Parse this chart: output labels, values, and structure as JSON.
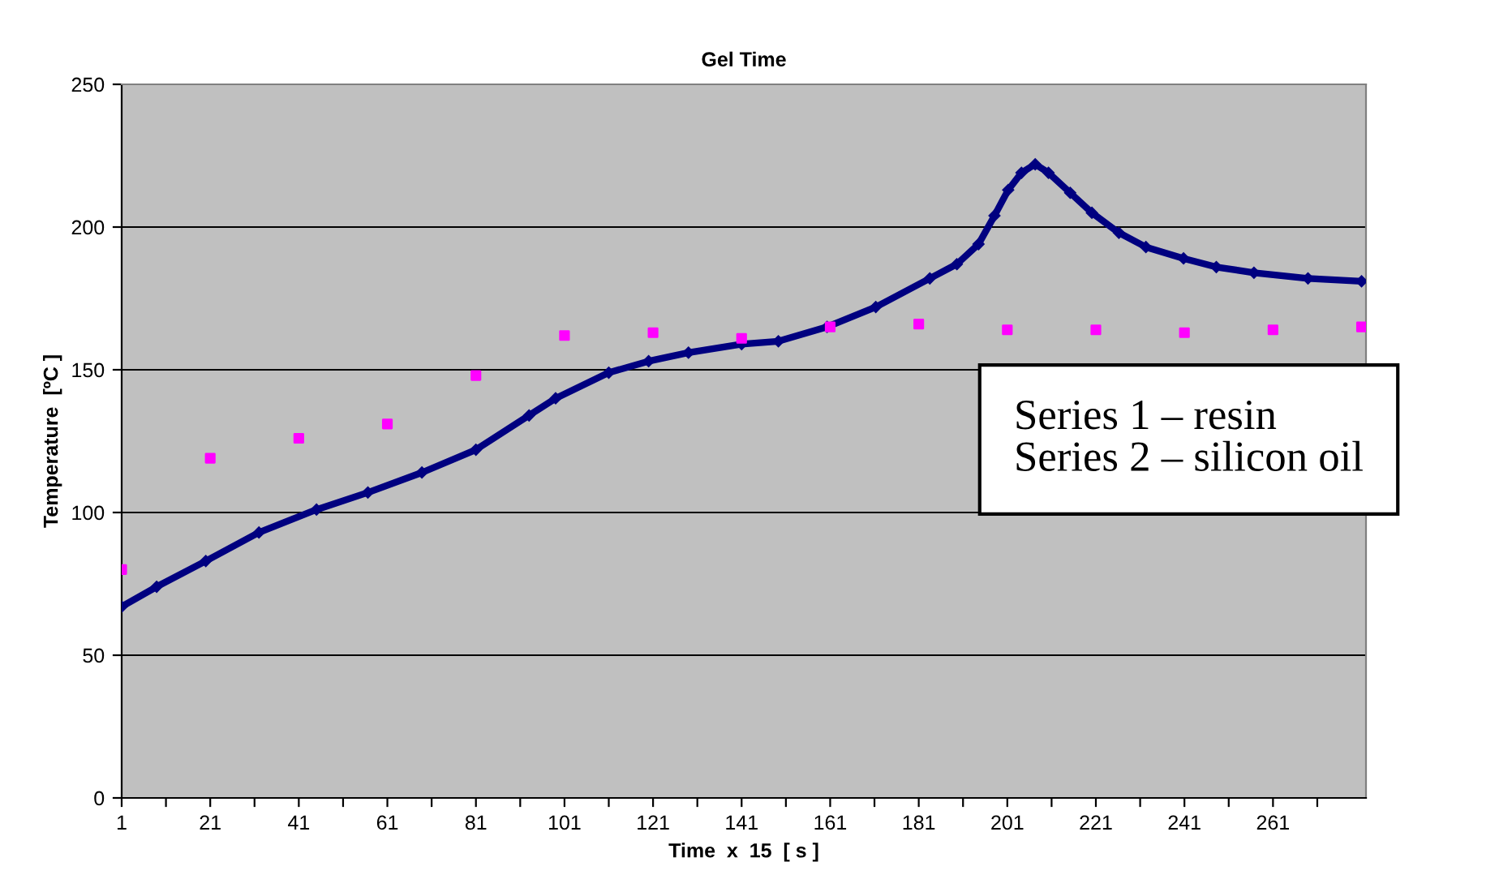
{
  "chart_data": {
    "type": "line",
    "title": "Gel Time",
    "xlabel": "Time  x  15  [ s ]",
    "ylabel": "Temperature  [ºC ]",
    "series": [
      {
        "color": "#000080",
        "marker": "diamond",
        "x": [
          1,
          8.9,
          20,
          32,
          45,
          56.6,
          68.8,
          81,
          93,
          99,
          111,
          120,
          129,
          141,
          149.3,
          160.3,
          171.3,
          183.5,
          189.6,
          194.5,
          198.1,
          201.2,
          204.2,
          207.3,
          210.3,
          215.2,
          220.1,
          226.2,
          232.3,
          240.8,
          248.2,
          256.7,
          268.9,
          281
        ],
        "values": [
          67,
          74,
          83,
          93,
          101,
          107,
          114,
          122,
          134,
          140,
          149,
          153,
          156,
          159,
          160,
          165,
          172,
          182,
          187,
          194,
          204,
          213,
          219,
          222,
          219,
          212,
          205,
          198,
          193,
          189,
          186,
          184,
          182,
          181
        ]
      },
      {
        "type": "scatter",
        "color": "#ff00ff",
        "marker": "square",
        "x": [
          1,
          21,
          41,
          61,
          81,
          101,
          121,
          141,
          161,
          181,
          201,
          221,
          241,
          261,
          281
        ],
        "values": [
          80,
          119,
          126,
          131,
          148,
          162,
          163,
          161,
          165,
          166,
          164,
          164,
          163,
          164,
          165
        ]
      }
    ],
    "xlim": [
      1,
      282
    ],
    "xticks": [
      1,
      {
        "value": 11,
        "label": null
      },
      21,
      {
        "value": 31,
        "label": null
      },
      41,
      {
        "value": 51,
        "label": null
      },
      61,
      {
        "value": 71,
        "label": null
      },
      81,
      {
        "value": 91,
        "label": null
      },
      101,
      {
        "value": 111,
        "label": null
      },
      121,
      {
        "value": 131,
        "label": null
      },
      141,
      {
        "value": 151,
        "label": null
      },
      161,
      {
        "value": 171,
        "label": null
      },
      181,
      {
        "value": 191,
        "label": null
      },
      201,
      {
        "value": 211,
        "label": null
      },
      221,
      {
        "value": 231,
        "label": null
      },
      241,
      {
        "value": 251,
        "label": null
      },
      261,
      {
        "value": 271,
        "label": null
      }
    ],
    "ylim": [
      0,
      250
    ],
    "yticks": [
      0,
      50,
      100,
      150,
      200,
      250
    ],
    "grid": "y",
    "annotations": [
      "Series 1 – resin",
      "Series 2 – silicon oil"
    ]
  }
}
